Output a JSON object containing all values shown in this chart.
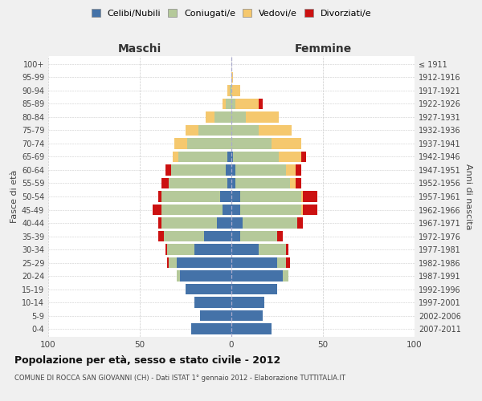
{
  "age_groups": [
    "0-4",
    "5-9",
    "10-14",
    "15-19",
    "20-24",
    "25-29",
    "30-34",
    "35-39",
    "40-44",
    "45-49",
    "50-54",
    "55-59",
    "60-64",
    "65-69",
    "70-74",
    "75-79",
    "80-84",
    "85-89",
    "90-94",
    "95-99",
    "100+"
  ],
  "birth_years": [
    "2007-2011",
    "2002-2006",
    "1997-2001",
    "1992-1996",
    "1987-1991",
    "1982-1986",
    "1977-1981",
    "1972-1976",
    "1967-1971",
    "1962-1966",
    "1957-1961",
    "1952-1956",
    "1947-1951",
    "1942-1946",
    "1937-1941",
    "1932-1936",
    "1927-1931",
    "1922-1926",
    "1917-1921",
    "1912-1916",
    "≤ 1911"
  ],
  "maschi": {
    "celibi": [
      22,
      17,
      20,
      25,
      28,
      30,
      20,
      15,
      8,
      5,
      6,
      2,
      3,
      2,
      0,
      0,
      0,
      0,
      0,
      0,
      0
    ],
    "coniugati": [
      0,
      0,
      0,
      0,
      2,
      4,
      15,
      22,
      30,
      33,
      32,
      32,
      30,
      27,
      24,
      18,
      9,
      3,
      1,
      0,
      0
    ],
    "vedovi": [
      0,
      0,
      0,
      0,
      0,
      0,
      0,
      0,
      0,
      0,
      0,
      0,
      0,
      3,
      7,
      7,
      5,
      2,
      1,
      0,
      0
    ],
    "divorziati": [
      0,
      0,
      0,
      0,
      0,
      1,
      1,
      3,
      2,
      5,
      2,
      4,
      3,
      0,
      0,
      0,
      0,
      0,
      0,
      0,
      0
    ]
  },
  "femmine": {
    "nubili": [
      22,
      17,
      18,
      25,
      28,
      25,
      15,
      5,
      6,
      5,
      5,
      2,
      2,
      1,
      0,
      0,
      0,
      0,
      0,
      0,
      0
    ],
    "coniugate": [
      0,
      0,
      0,
      0,
      3,
      5,
      15,
      20,
      30,
      33,
      33,
      30,
      28,
      25,
      22,
      15,
      8,
      2,
      0,
      0,
      0
    ],
    "vedove": [
      0,
      0,
      0,
      0,
      0,
      0,
      0,
      0,
      0,
      1,
      1,
      3,
      5,
      12,
      16,
      18,
      18,
      13,
      5,
      1,
      0
    ],
    "divorziate": [
      0,
      0,
      0,
      0,
      0,
      2,
      1,
      3,
      3,
      8,
      8,
      3,
      3,
      3,
      0,
      0,
      0,
      2,
      0,
      0,
      0
    ]
  },
  "colors": {
    "celibi": "#4472a8",
    "coniugati": "#b5c99a",
    "vedovi": "#f5c86e",
    "divorziati": "#cc1111"
  },
  "xlim": [
    -100,
    100
  ],
  "title_main": "Popolazione per età, sesso e stato civile - 2012",
  "title_sub": "COMUNE DI ROCCA SAN GIOVANNI (CH) - Dati ISTAT 1° gennaio 2012 - Elaborazione TUTTITALIA.IT",
  "ylabel_left": "Fasce di età",
  "ylabel_right": "Anni di nascita",
  "legend_labels": [
    "Celibi/Nubili",
    "Coniugati/e",
    "Vedovi/e",
    "Divorziati/e"
  ],
  "maschi_label": "Maschi",
  "femmine_label": "Femmine",
  "bg_color": "#f0f0f0",
  "plot_bg_color": "#ffffff"
}
